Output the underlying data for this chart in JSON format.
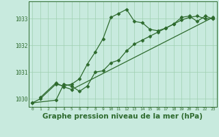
{
  "bg_color": "#c8eade",
  "line_color": "#2d6a2d",
  "grid_color": "#9ecfb0",
  "xlabel": "Graphe pression niveau de la mer (hPa)",
  "xlabel_fontsize": 7.5,
  "xlim": [
    -0.5,
    23.5
  ],
  "ylim": [
    1029.7,
    1033.65
  ],
  "yticks": [
    1030,
    1031,
    1032,
    1033
  ],
  "xticks": [
    0,
    1,
    2,
    3,
    4,
    5,
    6,
    7,
    8,
    9,
    10,
    11,
    12,
    13,
    14,
    15,
    16,
    17,
    18,
    19,
    20,
    21,
    22,
    23
  ],
  "line1_x": [
    0,
    1,
    3,
    4,
    5,
    6,
    7,
    8,
    9,
    10,
    11,
    12,
    13,
    14,
    15,
    16,
    17,
    18,
    19,
    20,
    21,
    22,
    23
  ],
  "line1_y": [
    1029.85,
    1030.0,
    1030.55,
    1030.48,
    1030.55,
    1030.75,
    1031.3,
    1031.75,
    1032.25,
    1033.05,
    1033.2,
    1033.35,
    1032.9,
    1032.85,
    1032.6,
    1032.55,
    1032.65,
    1032.8,
    1033.05,
    1033.1,
    1032.9,
    1033.1,
    1033.0
  ],
  "line2_x": [
    0,
    3,
    4,
    5,
    6,
    7,
    8,
    9,
    10,
    11,
    12,
    13,
    14,
    15,
    16,
    17,
    18,
    19,
    20,
    21,
    22,
    23
  ],
  "line2_y": [
    1029.85,
    1029.95,
    1030.55,
    1030.48,
    1030.28,
    1030.48,
    1031.0,
    1031.05,
    1031.35,
    1031.45,
    1031.8,
    1032.05,
    1032.2,
    1032.35,
    1032.5,
    1032.65,
    1032.8,
    1032.95,
    1033.05,
    1033.1,
    1033.0,
    1033.0
  ],
  "line3_x": [
    1,
    3,
    4,
    5,
    23
  ],
  "line3_y": [
    1030.05,
    1030.6,
    1030.45,
    1030.35,
    1033.05
  ],
  "marker": "D",
  "markersize": 2.5,
  "linewidth": 0.9
}
